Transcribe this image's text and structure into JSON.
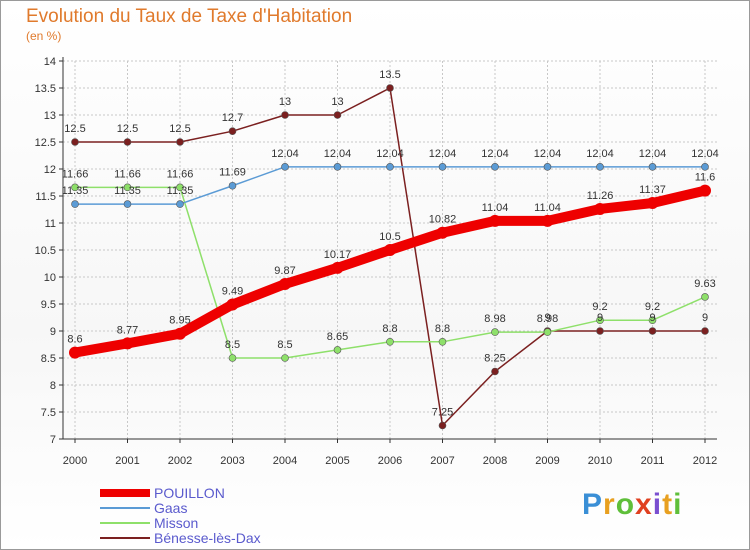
{
  "header": {
    "title": "Evolution du Taux de Taxe d'Habitation",
    "unit": "(en %)"
  },
  "logo": {
    "text": "Proxiti",
    "colors": [
      "#3a8fd6",
      "#e8a020",
      "#5fbf3a",
      "#e04020",
      "#7a4fd0",
      "#e8a020",
      "#5fbf3a"
    ]
  },
  "chart_data": {
    "type": "line",
    "x": [
      "2000",
      "2001",
      "2002",
      "2003",
      "2004",
      "2005",
      "2006",
      "2007",
      "2008",
      "2009",
      "2010",
      "2011",
      "2012"
    ],
    "ylim": [
      7,
      14
    ],
    "yticks": [
      "7",
      "7.5",
      "8",
      "8.5",
      "9",
      "9.5",
      "10",
      "10.5",
      "11",
      "11.5",
      "12",
      "12.5",
      "13",
      "13.5",
      "14"
    ],
    "grid": true,
    "legend_position": "bottom-left",
    "series": [
      {
        "name": "POUILLON",
        "color": "#ee0000",
        "width": 10,
        "values": [
          8.6,
          8.77,
          8.95,
          9.49,
          9.87,
          10.17,
          10.5,
          10.82,
          11.04,
          11.04,
          11.26,
          11.37,
          11.6
        ],
        "labels": [
          "8.6",
          "8.77",
          "8.95",
          "9.49",
          "9.87",
          "10.17",
          "10.5",
          "10.82",
          "11.04",
          "11.04",
          "11.26",
          "11.37",
          "11.6"
        ]
      },
      {
        "name": "Gaas",
        "color": "#5b9bd5",
        "width": 1.5,
        "values": [
          11.35,
          11.35,
          11.35,
          11.69,
          12.04,
          12.04,
          12.04,
          12.04,
          12.04,
          12.04,
          12.04,
          12.04,
          12.04
        ],
        "labels": [
          "11.35",
          "11.35",
          "11.35",
          "11.69",
          "12.04",
          "12.04",
          "12.04",
          "12.04",
          "12.04",
          "12.04",
          "12.04",
          "12.04",
          "12.04"
        ]
      },
      {
        "name": "Misson",
        "color": "#8ee06a",
        "width": 1.5,
        "values": [
          11.66,
          11.66,
          11.66,
          8.5,
          8.5,
          8.65,
          8.8,
          8.8,
          8.98,
          8.98,
          9.2,
          9.2,
          9.63
        ],
        "labels": [
          "11.66",
          "11.66",
          "11.66",
          "8.5",
          "8.5",
          "8.65",
          "8.8",
          "8.8",
          "8.98",
          "8.98",
          "9.2",
          "9.2",
          "9.63"
        ]
      },
      {
        "name": "Bénesse-lès-Dax",
        "color": "#7b2020",
        "width": 1.5,
        "values": [
          12.5,
          12.5,
          12.5,
          12.7,
          13,
          13,
          13.5,
          7.25,
          8.25,
          9,
          9,
          9,
          9
        ],
        "labels": [
          "12.5",
          "12.5",
          "12.5",
          "12.7",
          "13",
          "13",
          "13.5",
          "7.25",
          "8.25",
          "9",
          "9",
          "9",
          "9"
        ]
      }
    ]
  }
}
